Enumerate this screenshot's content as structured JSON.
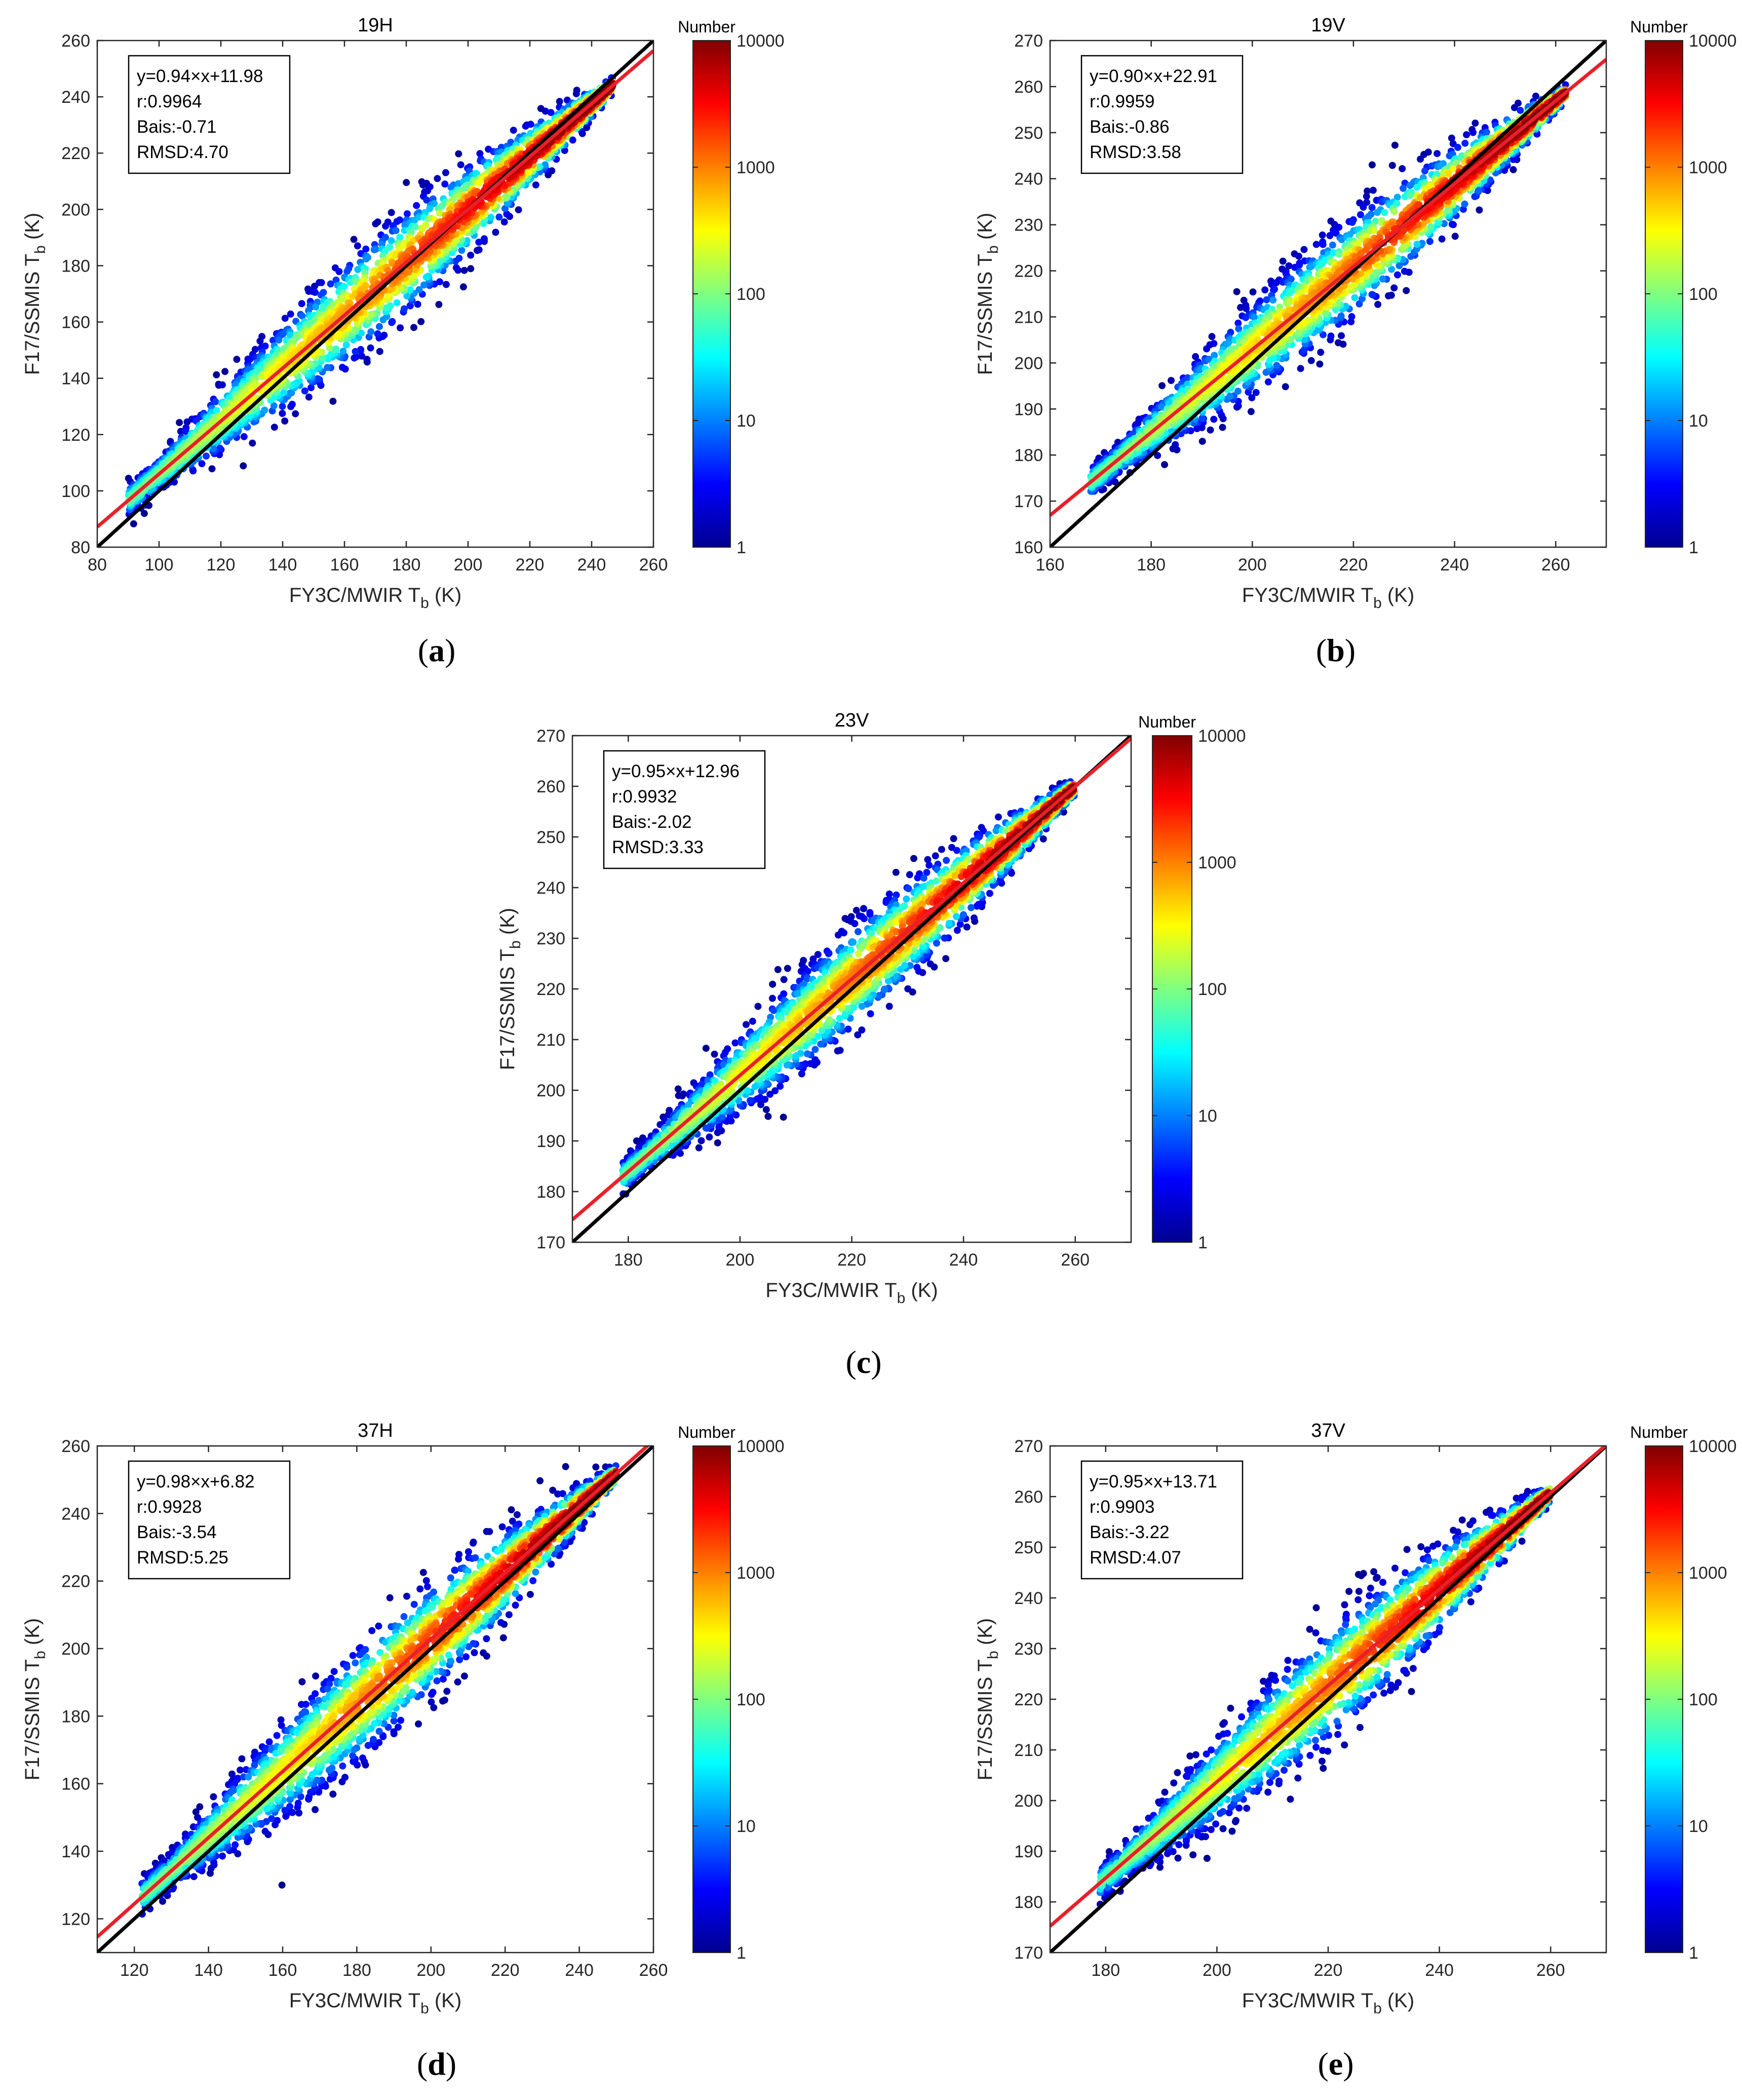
{
  "figure": {
    "colorbar_title": "Number",
    "colorbar_ticks": [
      "1",
      "10",
      "100",
      "1000",
      "10000"
    ],
    "colormap": [
      "#00008f",
      "#0000ff",
      "#0080ff",
      "#00ffff",
      "#80ff80",
      "#ffff00",
      "#ff8000",
      "#ff0000",
      "#800000"
    ],
    "fit_line_color": "#e8202a",
    "identity_line_color": "#000000"
  },
  "chart_data": [
    {
      "type": "scatter",
      "panel": "(a)",
      "title": "19H",
      "xlabel": "FY3C/MWIR T",
      "xlabel_sub": "b",
      "xlabel_unit": " (K)",
      "ylabel": "F17/SSMIS T",
      "ylabel_sub": "b",
      "ylabel_unit": " (K)",
      "xlim": [
        80,
        260
      ],
      "ylim": [
        80,
        260
      ],
      "xticks": [
        80,
        100,
        120,
        140,
        160,
        180,
        200,
        220,
        240,
        260
      ],
      "yticks": [
        80,
        100,
        120,
        140,
        160,
        180,
        200,
        220,
        240,
        260
      ],
      "data_range": [
        90,
        247
      ],
      "spread": 22,
      "fit": {
        "slope": 0.94,
        "intercept": 11.98
      },
      "stats": [
        "y=0.94×x+11.98",
        "r:0.9964",
        "Bais:-0.71",
        "RMSD:4.70"
      ],
      "colorbar_range": [
        1,
        10000
      ]
    },
    {
      "type": "scatter",
      "panel": "(b)",
      "title": "19V",
      "xlabel": "FY3C/MWIR T",
      "xlabel_sub": "b",
      "xlabel_unit": " (K)",
      "ylabel": "F17/SSMIS T",
      "ylabel_sub": "b",
      "ylabel_unit": " (K)",
      "xlim": [
        160,
        270
      ],
      "ylim": [
        160,
        270
      ],
      "xticks": [
        160,
        180,
        200,
        220,
        240,
        260
      ],
      "yticks": [
        160,
        170,
        180,
        190,
        200,
        210,
        220,
        230,
        240,
        250,
        260,
        270
      ],
      "data_range": [
        168,
        262
      ],
      "spread": 13,
      "fit": {
        "slope": 0.9,
        "intercept": 22.91
      },
      "stats": [
        "y=0.90×x+22.91",
        "r:0.9959",
        "Bais:-0.86",
        "RMSD:3.58"
      ],
      "colorbar_range": [
        1,
        10000
      ]
    },
    {
      "type": "scatter",
      "panel": "(c)",
      "title": "23V",
      "xlabel": "FY3C/MWIR T",
      "xlabel_sub": "b",
      "xlabel_unit": " (K)",
      "ylabel": "F17/SSMIS T",
      "ylabel_sub": "b",
      "ylabel_unit": " (K)",
      "xlim": [
        170,
        270
      ],
      "ylim": [
        170,
        270
      ],
      "xticks": [
        180,
        200,
        220,
        240,
        260
      ],
      "yticks": [
        170,
        180,
        190,
        200,
        210,
        220,
        230,
        240,
        250,
        260,
        270
      ],
      "data_range": [
        179,
        260
      ],
      "spread": 12,
      "fit": {
        "slope": 0.95,
        "intercept": 12.96
      },
      "stats": [
        "y=0.95×x+12.96",
        "r:0.9932",
        "Bais:-2.02",
        "RMSD:3.33"
      ],
      "colorbar_range": [
        1,
        10000
      ]
    },
    {
      "type": "scatter",
      "panel": "(d)",
      "title": "37H",
      "xlabel": "FY3C/MWIR T",
      "xlabel_sub": "b",
      "xlabel_unit": " (K)",
      "ylabel": "F17/SSMIS T",
      "ylabel_sub": "b",
      "ylabel_unit": " (K)",
      "xlim": [
        110,
        260
      ],
      "ylim": [
        110,
        260
      ],
      "xticks": [
        120,
        140,
        160,
        180,
        200,
        220,
        240,
        260
      ],
      "yticks": [
        120,
        140,
        160,
        180,
        200,
        220,
        240,
        260
      ],
      "data_range": [
        122,
        250
      ],
      "spread": 20,
      "fit": {
        "slope": 0.98,
        "intercept": 6.82
      },
      "stats": [
        "y=0.98×x+6.82",
        "r:0.9928",
        "Bais:-3.54",
        "RMSD:5.25"
      ],
      "colorbar_range": [
        1,
        10000
      ]
    },
    {
      "type": "scatter",
      "panel": "(e)",
      "title": "37V",
      "xlabel": "FY3C/MWIR T",
      "xlabel_sub": "b",
      "xlabel_unit": " (K)",
      "ylabel": "F17/SSMIS T",
      "ylabel_sub": "b",
      "ylabel_unit": " (K)",
      "xlim": [
        170,
        270
      ],
      "ylim": [
        170,
        270
      ],
      "xticks": [
        180,
        200,
        220,
        240,
        260
      ],
      "yticks": [
        170,
        180,
        190,
        200,
        210,
        220,
        230,
        240,
        250,
        260,
        270
      ],
      "data_range": [
        179,
        260
      ],
      "spread": 13,
      "fit": {
        "slope": 0.95,
        "intercept": 13.71
      },
      "stats": [
        "y=0.95×x+13.71",
        "r:0.9903",
        "Bais:-3.22",
        "RMSD:4.07"
      ],
      "colorbar_range": [
        1,
        10000
      ]
    }
  ]
}
